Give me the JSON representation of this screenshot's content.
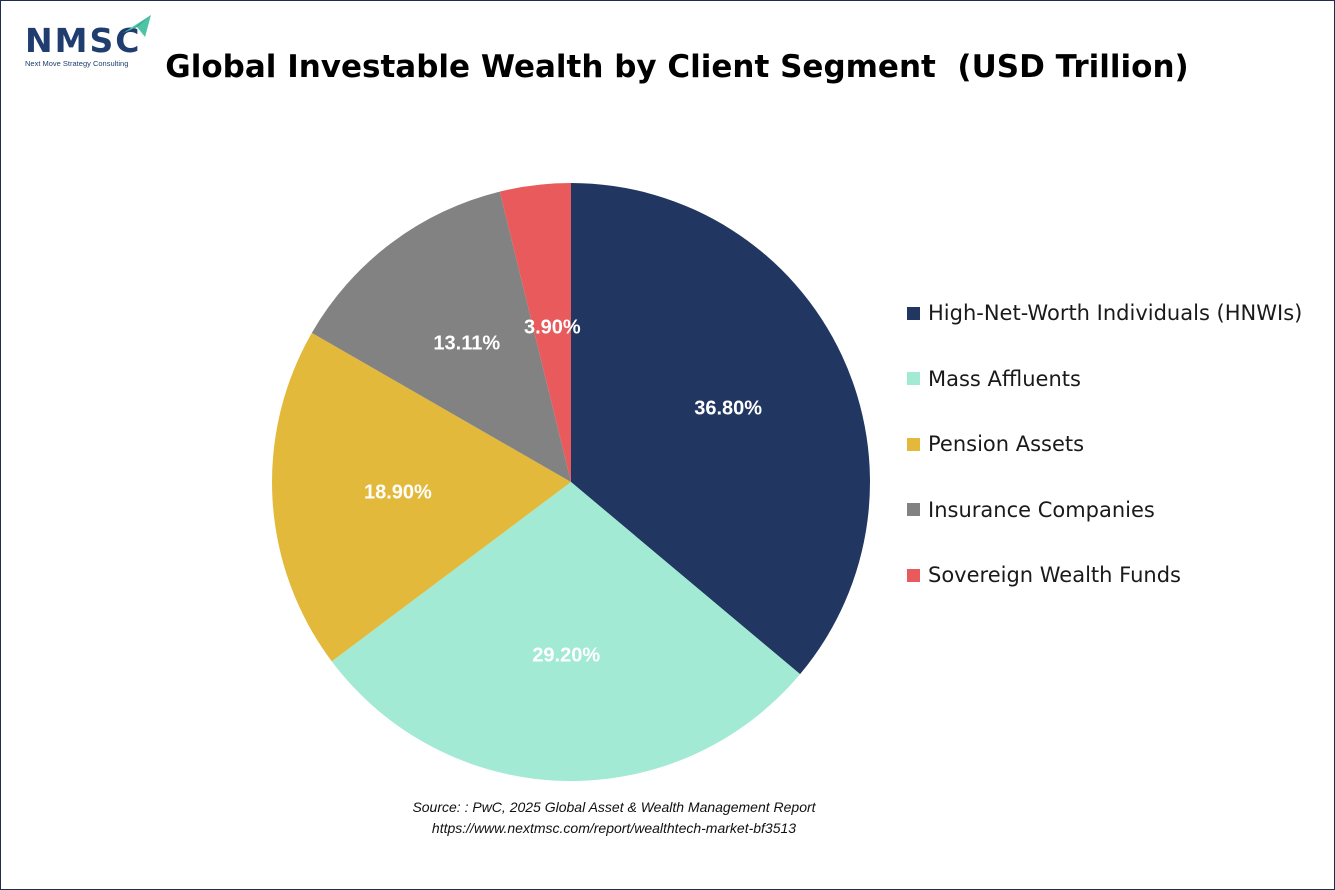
{
  "logo": {
    "name": "NMSC",
    "tagline": "Next Move Strategy Consulting"
  },
  "colors": {
    "border": "#1f2d4f",
    "logo": "#1f3d6e",
    "logo_arrow": "#4fc3a7"
  },
  "chart_data": {
    "type": "pie",
    "title": "Global Investable Wealth by Client Segment  (USD Trillion)",
    "slices": [
      {
        "label": "High-Net-Worth Individuals (HNWIs)",
        "value": 36.8,
        "display": "36.80%",
        "color": "#213762",
        "label_color": "#ffffff"
      },
      {
        "label": "Mass Affluents",
        "value": 29.2,
        "display": "29.20%",
        "color": "#a2ead3",
        "label_color": "#ffffff"
      },
      {
        "label": "Pension Assets",
        "value": 18.9,
        "display": "18.90%",
        "color": "#e2b93b",
        "label_color": "#ffffff"
      },
      {
        "label": "Insurance Companies",
        "value": 13.11,
        "display": "13.11%",
        "color": "#828282",
        "label_color": "#ffffff"
      },
      {
        "label": "Sovereign Wealth Funds",
        "value": 3.9,
        "display": "3.90%",
        "color": "#e85a5c",
        "label_color": "#ffffff"
      }
    ],
    "start_angle": "12 o'clock",
    "direction": "clockwise",
    "legend_position": "right"
  },
  "source": {
    "line1": "Source: : PwC, 2025 Global Asset & Wealth Management Report",
    "line2": "https://www.nextmsc.com/report/wealthtech-market-bf3513"
  }
}
